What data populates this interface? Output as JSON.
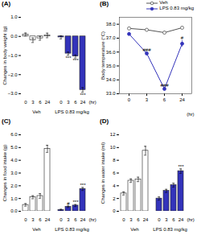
{
  "chart_data": [
    {
      "type": "bar",
      "title": "(A)",
      "ylabel": "Changes in body weight (g)",
      "xlabel": "(hr)",
      "categories": [
        "0",
        "3",
        "6",
        "24"
      ],
      "series": [
        {
          "name": "Veh",
          "color": "#ffffff",
          "values": [
            0.1,
            -0.2,
            -0.1,
            0.05
          ],
          "errors": [
            0.08,
            0.12,
            0.1,
            0.12
          ]
        },
        {
          "name": "LPS 0.83 mg/kg",
          "color": "#3333bb",
          "values": [
            -0.05,
            -0.9,
            -1.05,
            -2.8
          ],
          "errors": [
            0.08,
            0.08,
            0.08,
            0.12
          ],
          "annotations": [
            {
              "category": "3",
              "text": "***"
            },
            {
              "category": "6",
              "text": "***"
            },
            {
              "category": "24",
              "text": "***"
            }
          ]
        }
      ],
      "ylim": [
        -3.0,
        1.0
      ],
      "yticks": [
        -3,
        -2,
        -1,
        0,
        1
      ],
      "grid": false
    },
    {
      "type": "line",
      "title": "(B)",
      "ylabel": "Body temperature (°C)",
      "xlabel": "(hr)",
      "categories": [
        "0",
        "3",
        "6",
        "24"
      ],
      "series": [
        {
          "name": "Veh",
          "color": "#555555",
          "marker": "circle_open",
          "values": [
            37.7,
            37.6,
            37.4,
            37.75
          ],
          "errors": [
            0.08,
            0.08,
            0.12,
            0.08
          ]
        },
        {
          "name": "LPS 0.83 mg/kg",
          "color": "#3333bb",
          "marker": "circle",
          "values": [
            37.3,
            35.9,
            33.35,
            36.6
          ],
          "errors": [
            0.1,
            0.1,
            0.1,
            0.25
          ],
          "annotations": [
            {
              "category": "3",
              "text": "###"
            },
            {
              "category": "6",
              "text": "###"
            },
            {
              "category": "24",
              "text": "#"
            }
          ]
        }
      ],
      "ylim": [
        33.0,
        38.5
      ],
      "yticks": [
        33,
        34,
        35,
        36,
        37,
        38
      ],
      "legend": "upper right",
      "grid": false
    },
    {
      "type": "bar",
      "title": "(C)",
      "ylabel": "Changes in food intake (g)",
      "xlabel": "(hr)",
      "categories": [
        "0",
        "3",
        "6",
        "24"
      ],
      "series": [
        {
          "name": "Veh",
          "color": "#ffffff",
          "values": [
            0.5,
            1.1,
            1.2,
            4.9
          ],
          "errors": [
            0.1,
            0.12,
            0.18,
            0.28
          ]
        },
        {
          "name": "LPS 0.83 mg/kg",
          "color": "#3333bb",
          "values": [
            0.1,
            0.35,
            0.45,
            1.75
          ],
          "errors": [
            0.06,
            0.06,
            0.08,
            0.12
          ],
          "annotations": [
            {
              "category": "3",
              "text": "#"
            },
            {
              "category": "6",
              "text": "***"
            },
            {
              "category": "24",
              "text": "***"
            }
          ]
        }
      ],
      "ylim": [
        0,
        6
      ],
      "yticks": [
        0,
        1,
        2,
        3,
        4,
        5,
        6
      ],
      "grid": false
    },
    {
      "type": "bar",
      "title": "(D)",
      "ylabel": "Changes in water intake (ml)",
      "xlabel": "(hr)",
      "categories": [
        "0",
        "3",
        "6",
        "24"
      ],
      "series": [
        {
          "name": "Veh",
          "color": "#ffffff",
          "values": [
            2.8,
            4.8,
            5.0,
            9.5
          ],
          "errors": [
            0.25,
            0.28,
            0.35,
            0.7
          ]
        },
        {
          "name": "LPS 0.83 mg/kg",
          "color": "#3333bb",
          "values": [
            2.0,
            3.2,
            4.1,
            6.3
          ],
          "errors": [
            0.25,
            0.25,
            0.3,
            0.35
          ],
          "annotations": [
            {
              "category": "24",
              "text": "***"
            }
          ]
        }
      ],
      "ylim": [
        0,
        12
      ],
      "yticks": [
        0,
        2,
        4,
        6,
        8,
        10,
        12
      ],
      "grid": false
    }
  ]
}
